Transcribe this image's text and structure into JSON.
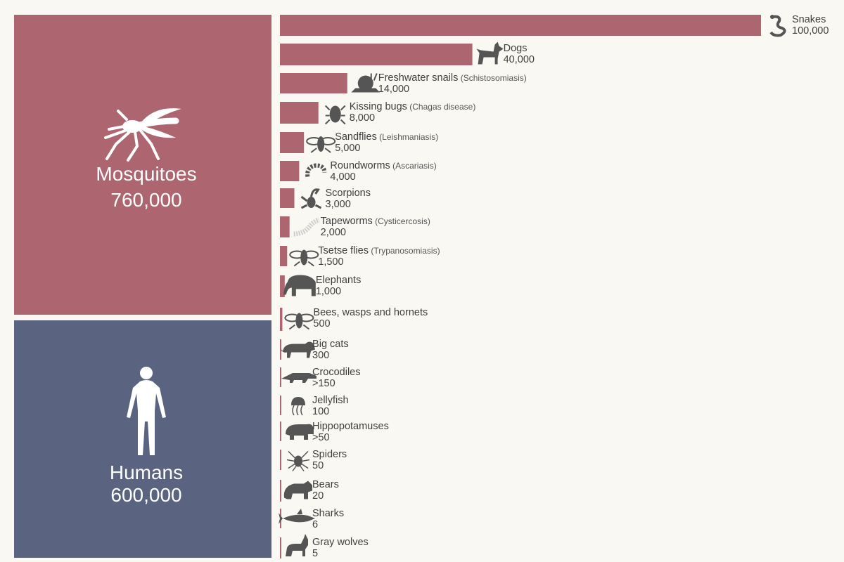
{
  "chart_data": {
    "type": "bar",
    "title": "",
    "xlabel": "",
    "ylabel": "",
    "big_blocks": [
      {
        "name": "Mosquitoes",
        "value_label": "760,000",
        "value": 760000,
        "color": "#ad6670",
        "icon": "mosquito-icon"
      },
      {
        "name": "Humans",
        "value_label": "600,000",
        "value": 600000,
        "color": "#5a6480",
        "icon": "human-icon"
      }
    ],
    "bar_color": "#ad6670",
    "icon_color": "#555555",
    "bars": [
      {
        "name": "Snakes",
        "note": "",
        "value_label": "100,000",
        "value": 100000,
        "icon": "snake-icon"
      },
      {
        "name": "Dogs",
        "note": "",
        "value_label": "40,000",
        "value": 40000,
        "icon": "dog-icon"
      },
      {
        "name": "Freshwater snails",
        "note": "(Schistosomiasis)",
        "value_label": "14,000",
        "value": 14000,
        "icon": "snail-icon"
      },
      {
        "name": "Kissing bugs",
        "note": "(Chagas disease)",
        "value_label": "8,000",
        "value": 8000,
        "icon": "kissing-bug-icon"
      },
      {
        "name": "Sandflies",
        "note": "(Leishmaniasis)",
        "value_label": "5,000",
        "value": 5000,
        "icon": "sandfly-icon"
      },
      {
        "name": "Roundworms",
        "note": "(Ascariasis)",
        "value_label": "4,000",
        "value": 4000,
        "icon": "roundworm-icon"
      },
      {
        "name": "Scorpions",
        "note": "",
        "value_label": "3,000",
        "value": 3000,
        "icon": "scorpion-icon"
      },
      {
        "name": "Tapeworms",
        "note": "(Cysticercosis)",
        "value_label": "2,000",
        "value": 2000,
        "icon": "tapeworm-icon"
      },
      {
        "name": "Tsetse flies",
        "note": "(Trypanosomiasis)",
        "value_label": "1,500",
        "value": 1500,
        "icon": "tsetse-fly-icon"
      },
      {
        "name": "Elephants",
        "note": "",
        "value_label": "1,000",
        "value": 1000,
        "icon": "elephant-icon"
      },
      {
        "name": "Bees, wasps and hornets",
        "note": "",
        "value_label": "500",
        "value": 500,
        "icon": "bee-icon"
      },
      {
        "name": "Big cats",
        "note": "",
        "value_label": "300",
        "value": 300,
        "icon": "big-cat-icon"
      },
      {
        "name": "Crocodiles",
        "note": "",
        "value_label": ">150",
        "value": 150,
        "icon": "crocodile-icon"
      },
      {
        "name": "Jellyfish",
        "note": "",
        "value_label": "100",
        "value": 100,
        "icon": "jellyfish-icon"
      },
      {
        "name": "Hippopotamuses",
        "note": "",
        "value_label": ">50",
        "value": 50,
        "icon": "hippo-icon"
      },
      {
        "name": "Spiders",
        "note": "",
        "value_label": "50",
        "value": 50,
        "icon": "spider-icon"
      },
      {
        "name": "Bears",
        "note": "",
        "value_label": "20",
        "value": 20,
        "icon": "bear-icon"
      },
      {
        "name": "Sharks",
        "note": "",
        "value_label": "6",
        "value": 6,
        "icon": "shark-icon"
      },
      {
        "name": "Gray wolves",
        "note": "",
        "value_label": "5",
        "value": 5,
        "icon": "wolf-icon"
      }
    ]
  }
}
